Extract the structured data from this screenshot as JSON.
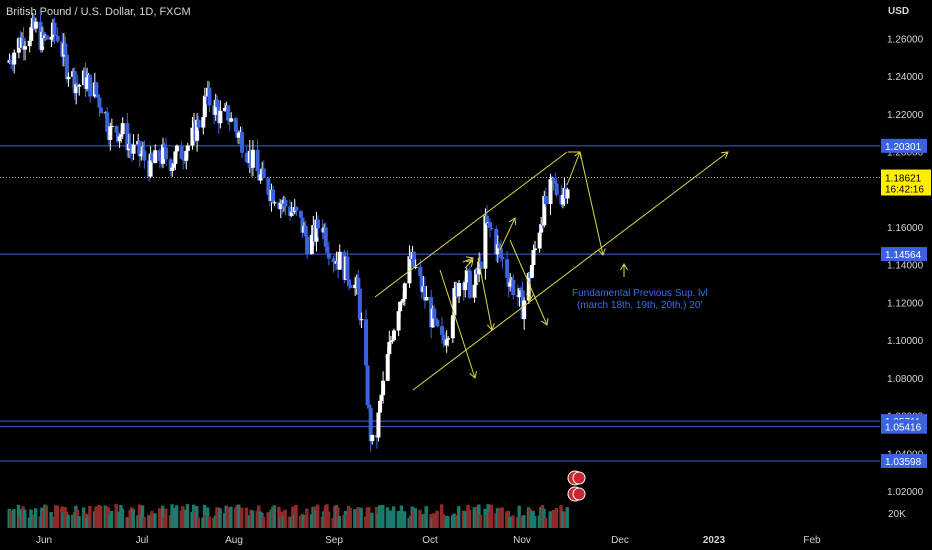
{
  "header": {
    "title": "British Pound / U.S. Dollar, 1D, FXCM",
    "currency": "USD"
  },
  "chart_data": {
    "type": "candlestick",
    "title": "British Pound / U.S. Dollar, 1D, FXCM",
    "ylabel": "USD",
    "ylim": [
      1.01,
      1.275
    ],
    "y_ticks": [
      "1.26000",
      "1.24000",
      "1.22000",
      "1.20000",
      "1.16000",
      "1.14000",
      "1.12000",
      "1.10000",
      "1.08000",
      "1.06000",
      "1.04000",
      "1.02000"
    ],
    "x_ticks": [
      "Jun",
      "Jul",
      "Aug",
      "Sep",
      "Oct",
      "Nov",
      "Dec",
      "2023",
      "Feb"
    ],
    "volume_label": "20K",
    "last_price": {
      "value": "1.18621",
      "countdown": "16:42:16"
    },
    "levels": [
      {
        "value": "1.20301",
        "price": 1.20301
      },
      {
        "value": "1.14564",
        "price": 1.14564
      },
      {
        "value": "1.05711",
        "price": 1.05711
      },
      {
        "value": "1.05416",
        "price": 1.05416
      },
      {
        "value": "1.03598",
        "price": 1.03598
      }
    ],
    "close_path": [
      [
        0,
        1.247
      ],
      [
        6,
        1.257
      ],
      [
        12,
        1.262
      ],
      [
        18,
        1.265
      ],
      [
        22,
        1.258
      ],
      [
        28,
        1.262
      ],
      [
        32,
        1.262
      ],
      [
        38,
        1.245
      ],
      [
        45,
        1.235
      ],
      [
        50,
        1.238
      ],
      [
        56,
        1.232
      ],
      [
        62,
        1.222
      ],
      [
        66,
        1.21
      ],
      [
        70,
        1.212
      ],
      [
        76,
        1.208
      ],
      [
        80,
        1.2
      ],
      [
        86,
        1.198
      ],
      [
        92,
        1.192
      ],
      [
        100,
        1.198
      ],
      [
        106,
        1.195
      ],
      [
        112,
        1.2
      ],
      [
        118,
        1.205
      ],
      [
        124,
        1.218
      ],
      [
        128,
        1.228
      ],
      [
        134,
        1.224
      ],
      [
        138,
        1.216
      ],
      [
        142,
        1.22
      ],
      [
        146,
        1.212
      ],
      [
        150,
        1.208
      ],
      [
        156,
        1.198
      ],
      [
        160,
        1.19
      ],
      [
        166,
        1.182
      ],
      [
        172,
        1.178
      ],
      [
        178,
        1.172
      ],
      [
        184,
        1.168
      ],
      [
        190,
        1.16
      ],
      [
        194,
        1.15
      ],
      [
        198,
        1.156
      ],
      [
        202,
        1.165
      ],
      [
        206,
        1.152
      ],
      [
        210,
        1.145
      ],
      [
        216,
        1.14
      ],
      [
        222,
        1.132
      ],
      [
        226,
        1.125
      ],
      [
        230,
        1.09
      ],
      [
        234,
        1.05
      ],
      [
        236,
        1.037
      ],
      [
        240,
        1.065
      ],
      [
        244,
        1.085
      ],
      [
        248,
        1.105
      ],
      [
        252,
        1.12
      ],
      [
        256,
        1.13
      ],
      [
        260,
        1.143
      ],
      [
        264,
        1.135
      ],
      [
        268,
        1.125
      ],
      [
        272,
        1.115
      ],
      [
        276,
        1.105
      ],
      [
        280,
        1.098
      ],
      [
        284,
        1.108
      ],
      [
        288,
        1.122
      ],
      [
        292,
        1.135
      ],
      [
        296,
        1.132
      ],
      [
        300,
        1.125
      ],
      [
        304,
        1.138
      ],
      [
        308,
        1.16
      ],
      [
        312,
        1.158
      ],
      [
        316,
        1.148
      ],
      [
        320,
        1.14
      ],
      [
        324,
        1.132
      ],
      [
        328,
        1.125
      ],
      [
        332,
        1.118
      ],
      [
        336,
        1.132
      ],
      [
        340,
        1.148
      ],
      [
        344,
        1.165
      ],
      [
        348,
        1.175
      ],
      [
        352,
        1.182
      ],
      [
        356,
        1.176
      ],
      [
        360,
        1.182
      ],
      [
        363,
        1.18621
      ]
    ],
    "series": [
      {
        "name": "British Pound / U.S. Dollar",
        "type": "candlestick"
      }
    ],
    "annotations": [
      {
        "text": "Fundamental Previous Sup. lvl",
        "line": 1
      },
      {
        "text": "(march 18th, 19th, 20th,) 20'",
        "line": 2
      }
    ],
    "colors": {
      "up": "#ffffff",
      "down": "#3b63e0",
      "level": "#3b63e0",
      "drawing": "#d8d84a",
      "vol_up": "#1b7a6b",
      "vol_down": "#8e2a2a"
    },
    "grid": false,
    "legend": "none"
  }
}
